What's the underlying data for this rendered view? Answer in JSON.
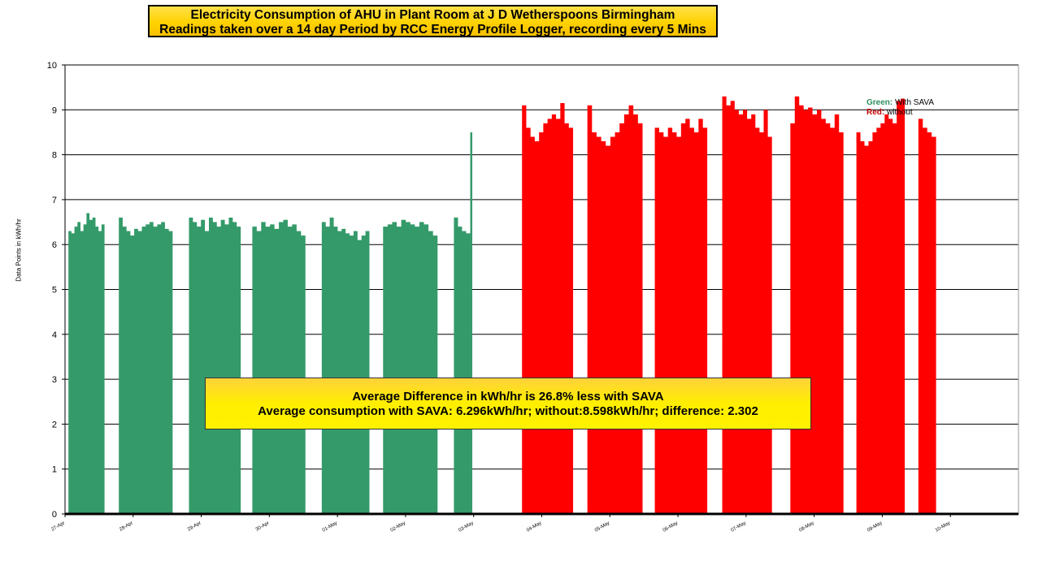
{
  "chart_data": {
    "type": "bar",
    "title_lines": [
      "Electricity  Consumption of AHU in Plant Room at J D Wetherspoons Birmingham",
      "Readings taken over a 14 day Period by RCC Energy Profile Logger, recording every 5 Mins"
    ],
    "ylabel": "Data Points in kWh/hr",
    "xlabel": "",
    "ylim": [
      0,
      10
    ],
    "yticks": [
      0,
      1,
      2,
      3,
      4,
      5,
      6,
      7,
      8,
      9,
      10
    ],
    "grid": true,
    "x_range": [
      0,
      14
    ],
    "x_ticks": [
      {
        "label": "27-Apr",
        "day": 0
      },
      {
        "label": "28-Apr",
        "day": 1
      },
      {
        "label": "29-Apr",
        "day": 2
      },
      {
        "label": "30-Apr",
        "day": 3
      },
      {
        "label": "01-May",
        "day": 4
      },
      {
        "label": "02-May",
        "day": 5
      },
      {
        "label": "03-May",
        "day": 6
      },
      {
        "label": "04-May",
        "day": 7
      },
      {
        "label": "05-May",
        "day": 8
      },
      {
        "label": "06-May",
        "day": 9
      },
      {
        "label": "07-May",
        "day": 10
      },
      {
        "label": "08-May",
        "day": 11
      },
      {
        "label": "09-May",
        "day": 12
      },
      {
        "label": "10-May",
        "day": 13
      }
    ],
    "legend": {
      "placement": "top-right",
      "green_key": "Green:",
      "green_text": "With SAVA",
      "red_key": "Red:",
      "red_text": "without"
    },
    "series": [
      {
        "color": "#349a6a",
        "segments": [
          {
            "start": 0.05,
            "end": 0.58,
            "values": [
              6.3,
              6.25,
              6.4,
              6.5,
              6.3,
              6.45,
              6.7,
              6.55,
              6.6,
              6.4,
              6.3,
              6.45
            ]
          },
          {
            "start": 0.79,
            "end": 1.58,
            "values": [
              6.6,
              6.4,
              6.3,
              6.2,
              6.35,
              6.3,
              6.4,
              6.45,
              6.5,
              6.4,
              6.45,
              6.5,
              6.35,
              6.3
            ]
          },
          {
            "start": 1.82,
            "end": 2.58,
            "values": [
              6.6,
              6.5,
              6.4,
              6.55,
              6.3,
              6.6,
              6.5,
              6.4,
              6.55,
              6.45,
              6.6,
              6.5,
              6.4
            ]
          },
          {
            "start": 2.75,
            "end": 3.53,
            "values": [
              6.4,
              6.3,
              6.5,
              6.4,
              6.45,
              6.35,
              6.5,
              6.55,
              6.4,
              6.45,
              6.3,
              6.2
            ]
          },
          {
            "start": 3.77,
            "end": 4.47,
            "values": [
              6.5,
              6.4,
              6.6,
              6.4,
              6.3,
              6.35,
              6.25,
              6.2,
              6.3,
              6.1,
              6.2,
              6.3
            ]
          },
          {
            "start": 4.67,
            "end": 5.47,
            "values": [
              6.4,
              6.45,
              6.5,
              6.4,
              6.55,
              6.5,
              6.45,
              6.4,
              6.5,
              6.45,
              6.3,
              6.2
            ]
          },
          {
            "start": 5.71,
            "end": 5.95,
            "values": [
              6.6,
              6.4,
              6.3,
              6.25
            ]
          },
          {
            "start": 5.95,
            "end": 5.98,
            "values": [
              8.5
            ]
          }
        ]
      },
      {
        "color": "#ff0000",
        "segments": [
          {
            "start": 6.71,
            "end": 7.46,
            "values": [
              9.1,
              8.6,
              8.4,
              8.3,
              8.5,
              8.7,
              8.8,
              8.9,
              8.8,
              9.15,
              8.7,
              8.6
            ]
          },
          {
            "start": 7.67,
            "end": 8.48,
            "values": [
              9.1,
              8.5,
              8.4,
              8.3,
              8.2,
              8.4,
              8.5,
              8.7,
              8.9,
              9.1,
              8.9,
              8.7
            ]
          },
          {
            "start": 8.66,
            "end": 9.43,
            "values": [
              8.6,
              8.5,
              8.4,
              8.6,
              8.5,
              8.4,
              8.7,
              8.8,
              8.6,
              8.5,
              8.8,
              8.6
            ]
          },
          {
            "start": 9.65,
            "end": 10.38,
            "values": [
              9.3,
              9.1,
              9.2,
              9.0,
              8.9,
              9.0,
              8.8,
              8.9,
              8.6,
              8.5,
              9.0,
              8.4
            ]
          },
          {
            "start": 10.65,
            "end": 11.43,
            "values": [
              8.7,
              9.3,
              9.1,
              9.0,
              9.05,
              8.9,
              9.0,
              8.8,
              8.7,
              8.6,
              8.9,
              8.5
            ]
          },
          {
            "start": 11.62,
            "end": 12.33,
            "values": [
              8.5,
              8.3,
              8.2,
              8.3,
              8.5,
              8.6,
              8.7,
              8.9,
              8.8,
              8.7,
              9.2,
              9.25
            ]
          },
          {
            "start": 12.53,
            "end": 12.79,
            "values": [
              8.8,
              8.6,
              8.5,
              8.4
            ]
          }
        ]
      }
    ],
    "annotations": [
      "Average Difference in kWh/hr is 26.8% less with SAVA",
      "Average consumption with SAVA: 6.296kWh/hr; without:8.598kWh/hr; difference: 2.302"
    ]
  }
}
